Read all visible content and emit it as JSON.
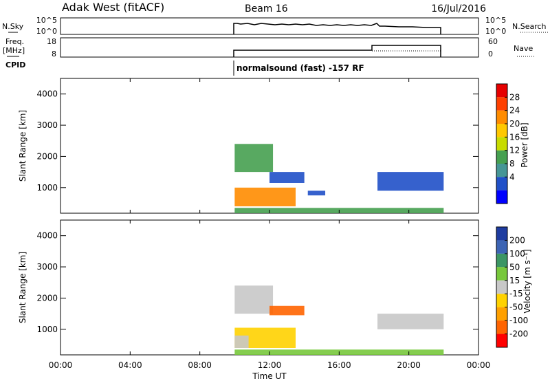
{
  "header": {
    "station": "Adak West (fitACF)",
    "beam": "Beam 16",
    "date": "16/Jul/2016"
  },
  "nsky_panel": {
    "left_label": "N.Sky",
    "right_label": "N.Search",
    "left_ticks": [
      "10^5",
      "10^0"
    ],
    "right_ticks": [
      "10^5",
      "10^0"
    ]
  },
  "freq_panel": {
    "left_label_line1": "Freq.",
    "left_label_line2": "[MHz]",
    "right_label": "Nave",
    "left_ticks": [
      "18",
      "8"
    ],
    "right_ticks": [
      "60",
      "0"
    ]
  },
  "cpid": {
    "label": "CPID",
    "program": "normalsound (fast) -157 RF"
  },
  "power_colorbar": {
    "label": "Power [dB]",
    "ticks": [
      "28",
      "24",
      "20",
      "16",
      "12",
      "8",
      "4"
    ],
    "colors": [
      "#e60000",
      "#ff4000",
      "#ff8c00",
      "#ffc800",
      "#c8dc00",
      "#46a050",
      "#469696",
      "#2050c8",
      "#0000ff"
    ]
  },
  "velocity_colorbar": {
    "label": "Velocity [m s⁻¹]",
    "ticks": [
      "200",
      "100",
      "50",
      "15",
      "-15",
      "-50",
      "-100",
      "-200"
    ],
    "colors": [
      "#1e3ca0",
      "#3c64b4",
      "#3c9664",
      "#78c83c",
      "#c8c8c8",
      "#ffd200",
      "#ffa000",
      "#ff6400",
      "#ff0000"
    ]
  },
  "chart_data": {
    "type": "heatmap",
    "xlabel": "Time UT",
    "x_ticks": [
      "00:00",
      "04:00",
      "08:00",
      "12:00",
      "16:00",
      "20:00",
      "00:00"
    ],
    "xlim_hours": [
      0,
      24
    ],
    "ylabel": "Slant Range [km]",
    "y_ticks": [
      4000,
      3000,
      2000,
      1000
    ],
    "ylim_km": [
      180,
      4500
    ],
    "data_window_hours": [
      10,
      22
    ],
    "panels": [
      {
        "name": "Power",
        "units": "dB",
        "regions": [
          {
            "t0": 10.0,
            "t1": 13.5,
            "r0": 400,
            "r1": 1000,
            "value": 24
          },
          {
            "t0": 10.0,
            "t1": 12.2,
            "r0": 1500,
            "r1": 2400,
            "value": 12
          },
          {
            "t0": 12.0,
            "t1": 14.0,
            "r0": 1150,
            "r1": 1500,
            "value": 6
          },
          {
            "t0": 14.2,
            "t1": 15.2,
            "r0": 750,
            "r1": 900,
            "value": 5
          },
          {
            "t0": 18.2,
            "t1": 22.0,
            "r0": 900,
            "r1": 1500,
            "value": 6
          },
          {
            "t0": 10.0,
            "t1": 22.0,
            "r0": 180,
            "r1": 350,
            "value": 12
          }
        ]
      },
      {
        "name": "Velocity",
        "units": "m s-1",
        "regions": [
          {
            "t0": 10.0,
            "t1": 13.5,
            "r0": 400,
            "r1": 1050,
            "value": -50
          },
          {
            "t0": 10.0,
            "t1": 10.8,
            "r0": 400,
            "r1": 800,
            "value": 0
          },
          {
            "t0": 10.0,
            "t1": 12.2,
            "r0": 1500,
            "r1": 2400,
            "value": 0
          },
          {
            "t0": 12.0,
            "t1": 14.0,
            "r0": 1450,
            "r1": 1750,
            "value": -200
          },
          {
            "t0": 18.2,
            "t1": 22.0,
            "r0": 1000,
            "r1": 1500,
            "value": 0
          },
          {
            "t0": 10.0,
            "t1": 22.0,
            "r0": 180,
            "r1": 350,
            "value": 30
          }
        ]
      }
    ]
  }
}
